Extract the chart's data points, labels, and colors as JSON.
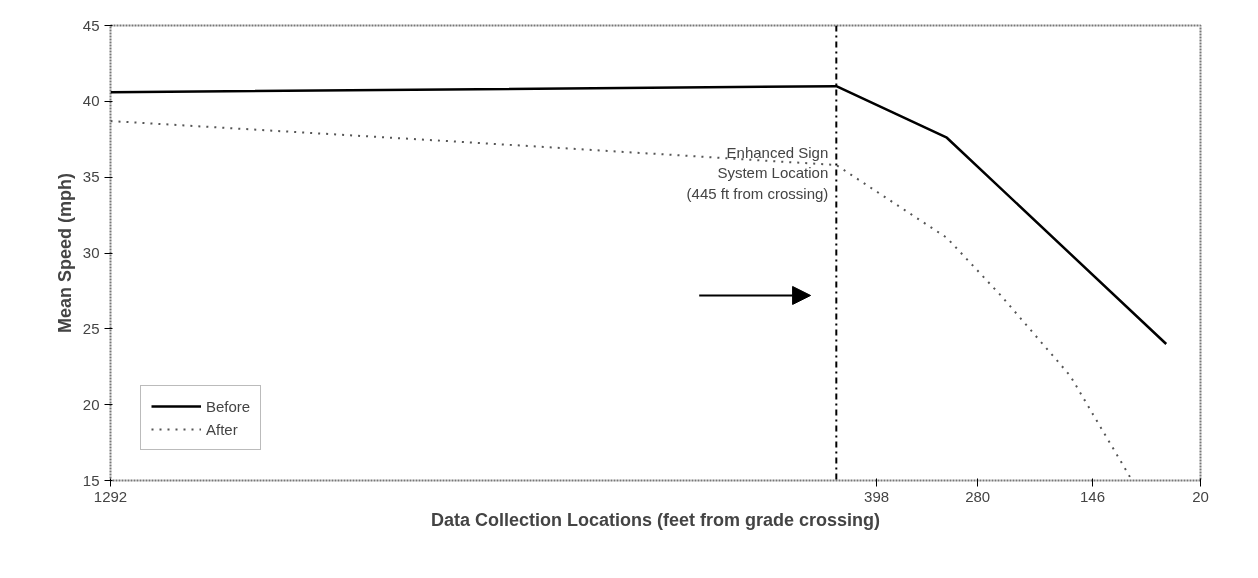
{
  "chart_data": {
    "type": "line",
    "xlabel": "Data Collection Locations (feet from grade crossing)",
    "ylabel": "Mean Speed (mph)",
    "series": [
      {
        "name": "Before",
        "color": "#000000",
        "line_style": "solid",
        "x": [
          1292,
          445,
          316,
          60
        ],
        "values": [
          40.6,
          41.0,
          37.6,
          24.0
        ]
      },
      {
        "name": "After",
        "color": "#555555",
        "line_style": "dotted",
        "x": [
          1292,
          875,
          445,
          316,
          253,
          172,
          104,
          100
        ],
        "values": [
          38.7,
          37.3,
          35.8,
          31.0,
          27.2,
          21.9,
          15.4,
          15.0
        ]
      }
    ],
    "xlim": [
      1292,
      20
    ],
    "xticks": [
      1292,
      398,
      280,
      146,
      20
    ],
    "ylim": [
      15,
      45
    ],
    "yticks": [
      15,
      20,
      25,
      30,
      35,
      40,
      45
    ],
    "ref_lines": [
      {
        "axis": "x",
        "value": 445,
        "label": "Enhanced Sign\nSystem Location\n(445 ft from crossing)",
        "color": "#000000",
        "line_style": "dashdot"
      }
    ],
    "grid": false,
    "legend": "bottom left",
    "marker": "none"
  }
}
